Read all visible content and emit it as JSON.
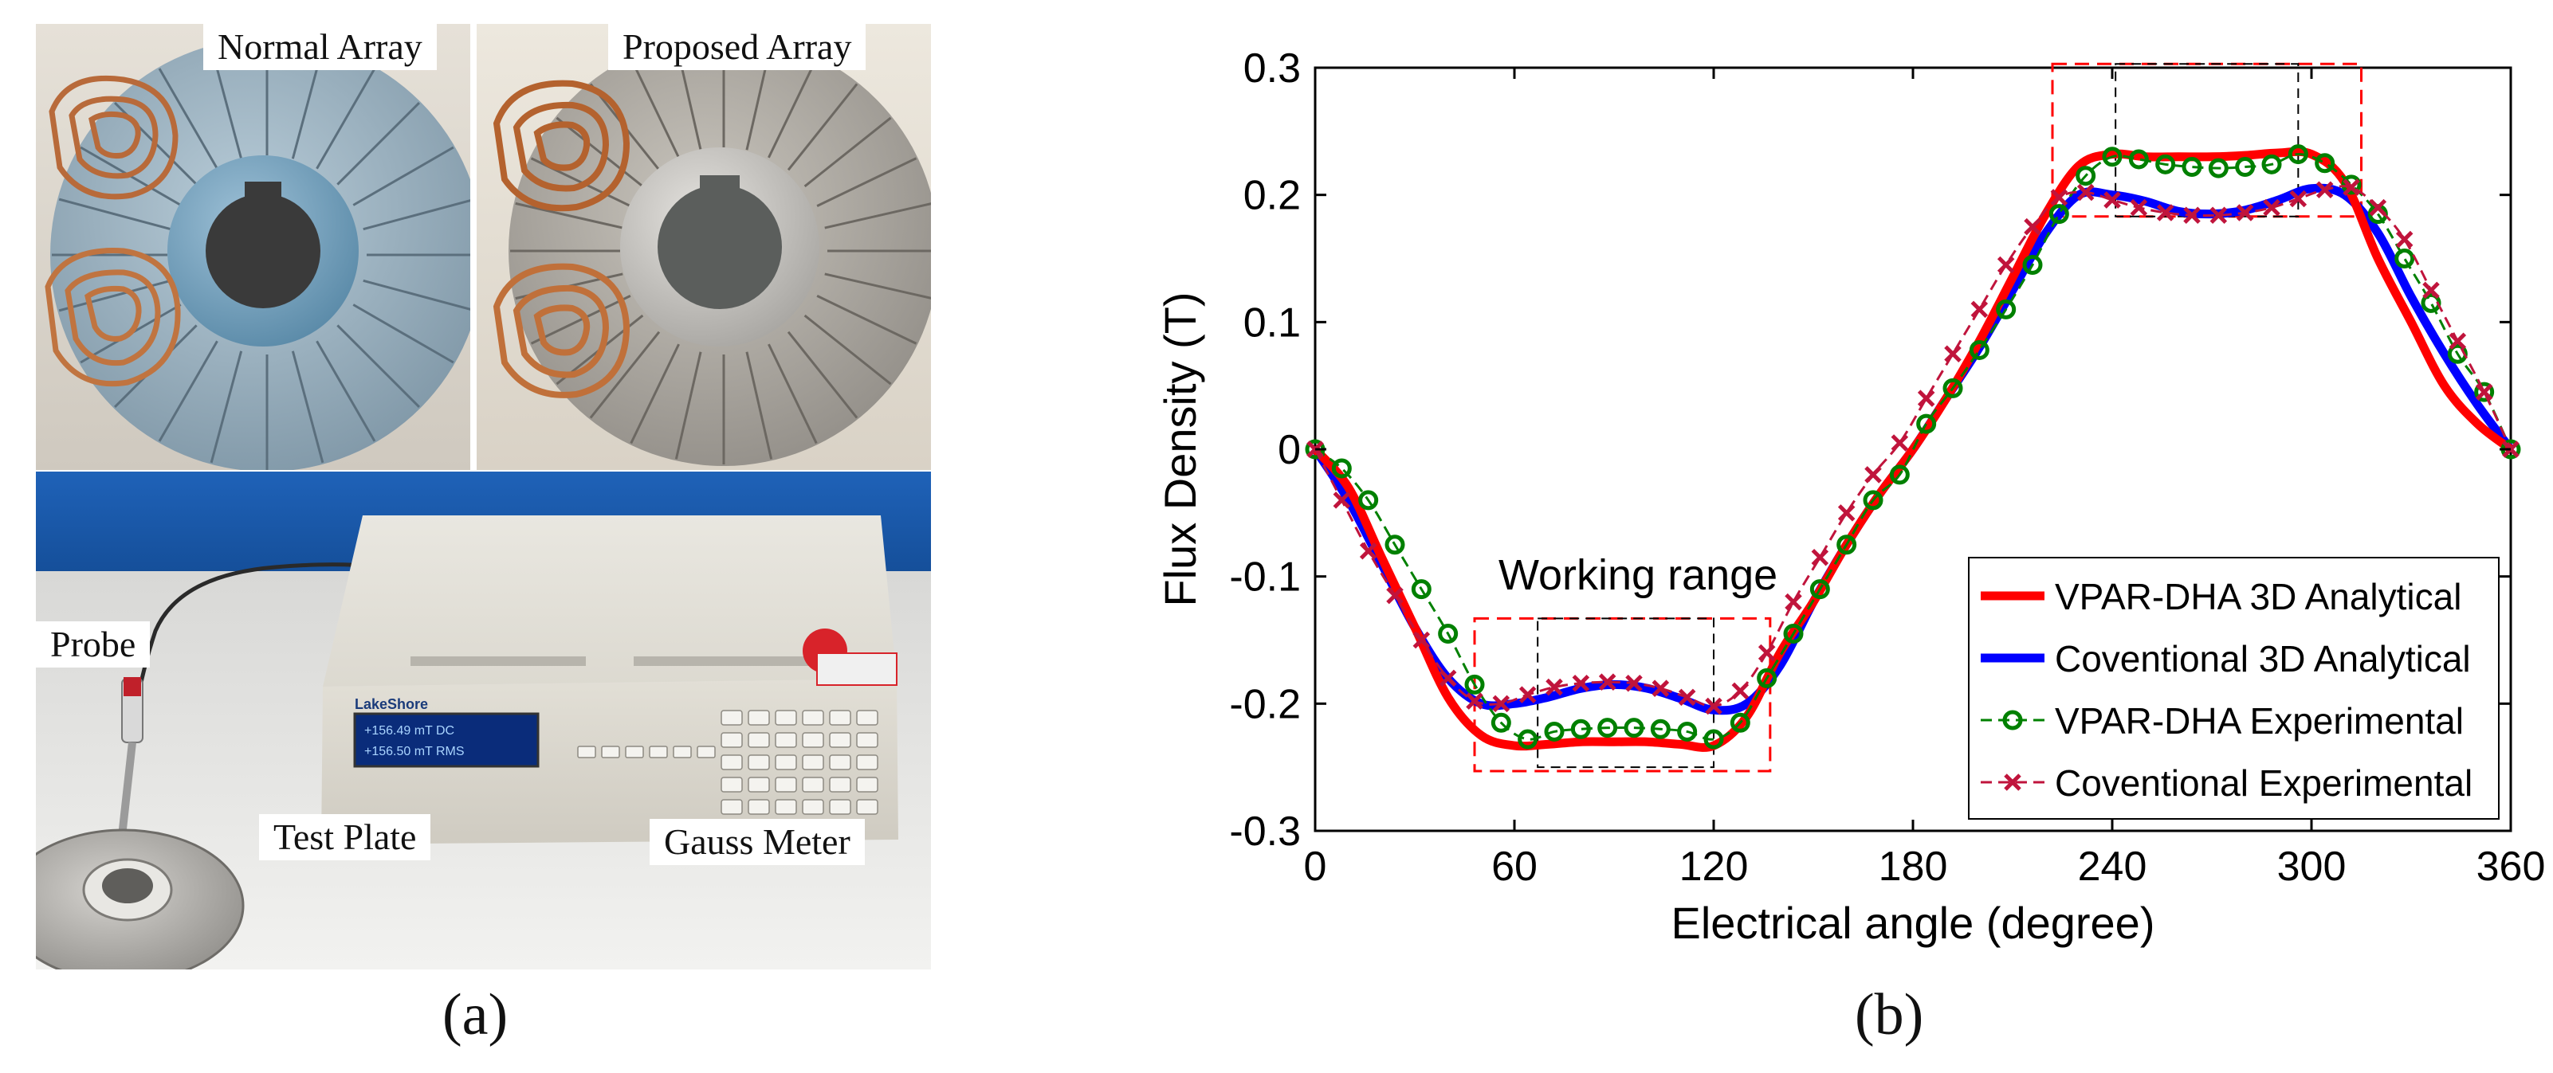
{
  "panel_a": {
    "caption": "(a)",
    "labels": {
      "normal_array": "Normal Array",
      "proposed_array": "Proposed Array",
      "probe": "Probe",
      "test_plate": "Test Plate",
      "gauss_meter": "Gauss Meter"
    },
    "device": {
      "brand": "LakeShore",
      "display_line1": "+156.49  mT DC",
      "display_line2": "+156.50  mT RMS"
    }
  },
  "panel_b": {
    "caption": "(b)",
    "annotation": "Working range"
  },
  "chart_data": {
    "type": "line",
    "title": "",
    "xlabel": "Electrical angle (degree)",
    "ylabel": "Flux Density (T)",
    "xlim": [
      0,
      360
    ],
    "ylim": [
      -0.3,
      0.3
    ],
    "xticks": [
      0,
      60,
      120,
      180,
      240,
      300,
      360
    ],
    "yticks": [
      -0.3,
      -0.2,
      -0.1,
      0,
      0.1,
      0.2,
      0.3
    ],
    "xtick_labels": [
      "0",
      "60",
      "120",
      "180",
      "240",
      "300",
      "360"
    ],
    "ytick_labels": [
      "-0.3",
      "-0.2",
      "-0.1",
      "0",
      "0.1",
      "0.2",
      "0.3"
    ],
    "legend_position": "bottom-right",
    "series": [
      {
        "name": "VPAR-DHA 3D Analytical",
        "style": "solid",
        "color": "#ff0000",
        "x": [
          0,
          10,
          20,
          30,
          40,
          50,
          60,
          70,
          80,
          90,
          100,
          110,
          120,
          130,
          140,
          150,
          160,
          170,
          180,
          190,
          200,
          210,
          220,
          230,
          240,
          250,
          260,
          270,
          280,
          290,
          300,
          310,
          320,
          330,
          340,
          350,
          360
        ],
        "y": [
          0,
          -0.03,
          -0.085,
          -0.14,
          -0.195,
          -0.225,
          -0.233,
          -0.232,
          -0.23,
          -0.23,
          -0.23,
          -0.232,
          -0.233,
          -0.21,
          -0.16,
          -0.12,
          -0.075,
          -0.035,
          0,
          0.04,
          0.085,
          0.135,
          0.185,
          0.223,
          0.232,
          0.23,
          0.23,
          0.23,
          0.231,
          0.233,
          0.232,
          0.21,
          0.15,
          0.1,
          0.05,
          0.02,
          0
        ]
      },
      {
        "name": "Coventional 3D Analytical",
        "style": "solid",
        "color": "#0000ff",
        "x": [
          0,
          10,
          20,
          30,
          40,
          50,
          60,
          70,
          80,
          90,
          100,
          110,
          120,
          130,
          140,
          150,
          160,
          170,
          180,
          190,
          200,
          210,
          220,
          230,
          240,
          250,
          260,
          270,
          280,
          290,
          300,
          310,
          320,
          330,
          340,
          350,
          360
        ],
        "y": [
          0,
          -0.04,
          -0.09,
          -0.14,
          -0.18,
          -0.2,
          -0.2,
          -0.195,
          -0.188,
          -0.185,
          -0.188,
          -0.196,
          -0.205,
          -0.2,
          -0.17,
          -0.12,
          -0.075,
          -0.035,
          0,
          0.04,
          0.08,
          0.125,
          0.17,
          0.2,
          0.2,
          0.195,
          0.187,
          0.185,
          0.188,
          0.196,
          0.205,
          0.2,
          0.17,
          0.12,
          0.075,
          0.035,
          0
        ]
      },
      {
        "name": "VPAR-DHA Experimental",
        "style": "dashed-circle",
        "color": "#008000",
        "x": [
          0,
          8,
          16,
          24,
          32,
          40,
          48,
          56,
          64,
          72,
          80,
          88,
          96,
          104,
          112,
          120,
          128,
          136,
          144,
          152,
          160,
          168,
          176,
          184,
          192,
          200,
          208,
          216,
          224,
          232,
          240,
          248,
          256,
          264,
          272,
          280,
          288,
          296,
          304,
          312,
          320,
          328,
          336,
          344,
          352,
          360
        ],
        "y": [
          0,
          -0.015,
          -0.04,
          -0.075,
          -0.11,
          -0.145,
          -0.185,
          -0.215,
          -0.228,
          -0.222,
          -0.22,
          -0.219,
          -0.219,
          -0.22,
          -0.222,
          -0.228,
          -0.215,
          -0.18,
          -0.145,
          -0.11,
          -0.075,
          -0.04,
          -0.02,
          0.02,
          0.048,
          0.078,
          0.11,
          0.145,
          0.185,
          0.215,
          0.23,
          0.228,
          0.224,
          0.222,
          0.221,
          0.222,
          0.224,
          0.232,
          0.225,
          0.208,
          0.185,
          0.15,
          0.115,
          0.075,
          0.045,
          0
        ]
      },
      {
        "name": "Coventional Experimental",
        "style": "dashed-cross",
        "color": "#c0143c",
        "x": [
          0,
          8,
          16,
          24,
          32,
          40,
          48,
          56,
          64,
          72,
          80,
          88,
          96,
          104,
          112,
          120,
          128,
          136,
          144,
          152,
          160,
          168,
          176,
          184,
          192,
          200,
          208,
          216,
          224,
          232,
          240,
          248,
          256,
          264,
          272,
          280,
          288,
          296,
          304,
          312,
          320,
          328,
          336,
          344,
          352,
          360
        ],
        "y": [
          0,
          -0.04,
          -0.08,
          -0.115,
          -0.15,
          -0.18,
          -0.198,
          -0.2,
          -0.193,
          -0.187,
          -0.184,
          -0.183,
          -0.184,
          -0.188,
          -0.195,
          -0.202,
          -0.19,
          -0.16,
          -0.12,
          -0.085,
          -0.05,
          -0.02,
          0.005,
          0.04,
          0.075,
          0.11,
          0.145,
          0.175,
          0.198,
          0.202,
          0.196,
          0.19,
          0.186,
          0.184,
          0.184,
          0.186,
          0.19,
          0.197,
          0.204,
          0.206,
          0.19,
          0.165,
          0.125,
          0.085,
          0.045,
          0
        ]
      }
    ],
    "annotations": [
      {
        "type": "dashed-rect",
        "color": "#ff0000",
        "x": [
          48,
          137
        ],
        "y": [
          -0.253,
          -0.133
        ]
      },
      {
        "type": "dashed-rect",
        "color": "#000000",
        "x": [
          67,
          120
        ],
        "y": [
          -0.25,
          -0.133
        ]
      },
      {
        "type": "dashed-rect",
        "color": "#ff0000",
        "x": [
          222,
          315
        ],
        "y": [
          0.183,
          0.303
        ]
      },
      {
        "type": "dashed-rect",
        "color": "#000000",
        "x": [
          241,
          296
        ],
        "y": [
          0.183,
          0.303
        ]
      }
    ]
  }
}
